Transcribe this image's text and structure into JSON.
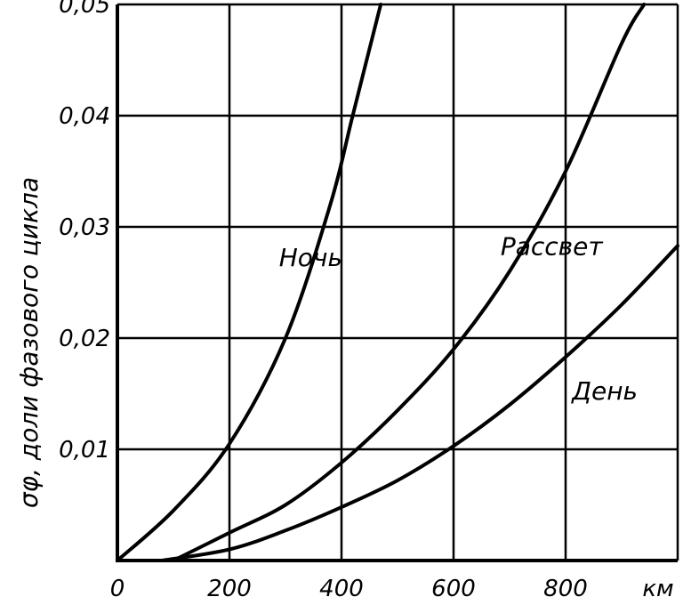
{
  "chart_data": {
    "type": "line",
    "xlabel": "км",
    "ylabel": "σφ, доли фазового цикла",
    "x_ticks": [
      "0",
      "200",
      "400",
      "600",
      "800"
    ],
    "y_ticks": [
      "0,01",
      "0,02",
      "0,03",
      "0,04",
      "0,05"
    ],
    "xlim": [
      0,
      1000
    ],
    "ylim": [
      0,
      0.05
    ],
    "grid": true,
    "series": [
      {
        "name": "Ночь",
        "x": [
          0,
          100,
          200,
          300,
          380,
          420,
          470
        ],
        "y": [
          0,
          0.0045,
          0.0105,
          0.02,
          0.032,
          0.04,
          0.05
        ]
      },
      {
        "name": "Рассвет",
        "x": [
          100,
          200,
          300,
          400,
          500,
          600,
          700,
          800,
          900,
          940
        ],
        "y": [
          0,
          0.0025,
          0.005,
          0.0088,
          0.0135,
          0.019,
          0.026,
          0.035,
          0.0465,
          0.05
        ]
      },
      {
        "name": "День",
        "x": [
          80,
          200,
          300,
          400,
          500,
          600,
          700,
          800,
          900,
          1000
        ],
        "y": [
          0,
          0.001,
          0.0027,
          0.0048,
          0.0072,
          0.0103,
          0.014,
          0.0183,
          0.023,
          0.0283
        ]
      }
    ]
  }
}
